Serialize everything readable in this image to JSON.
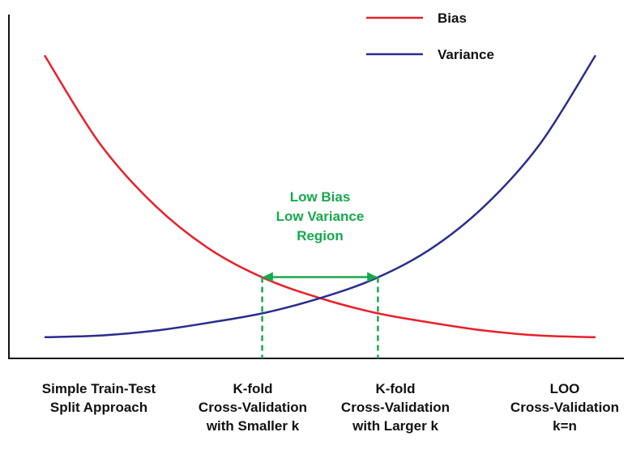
{
  "chart_data": {
    "type": "line",
    "title": "",
    "xlabel": "",
    "ylabel": "",
    "categories": [
      [
        "Simple Train-Test",
        "Split Approach"
      ],
      [
        "K-fold",
        "Cross-Validation",
        "with Smaller k"
      ],
      [
        "K-fold",
        "Cross-Validation",
        "with Larger k"
      ],
      [
        "LOO",
        "Cross-Validation",
        "k=n"
      ]
    ],
    "x": [
      0,
      0.1,
      0.2,
      0.3,
      0.4,
      0.5,
      0.6,
      0.7,
      0.8,
      0.9,
      1.0
    ],
    "series": [
      {
        "name": "Bias",
        "color": "#e8202a",
        "values": [
          0.93,
          0.66,
          0.47,
          0.335,
          0.245,
          0.185,
          0.14,
          0.11,
          0.085,
          0.07,
          0.065
        ]
      },
      {
        "name": "Variance",
        "color": "#2b2d8e",
        "values": [
          0.065,
          0.07,
          0.085,
          0.11,
          0.14,
          0.185,
          0.245,
          0.335,
          0.47,
          0.66,
          0.93
        ]
      }
    ],
    "ylim": [
      0,
      1.08
    ],
    "legend_position": "top-right",
    "grid": false,
    "annotation": {
      "lines": [
        "Low Bias",
        "Low Variance",
        "Region"
      ],
      "color": "#17a84d",
      "range": [
        0.395,
        0.605
      ]
    }
  }
}
